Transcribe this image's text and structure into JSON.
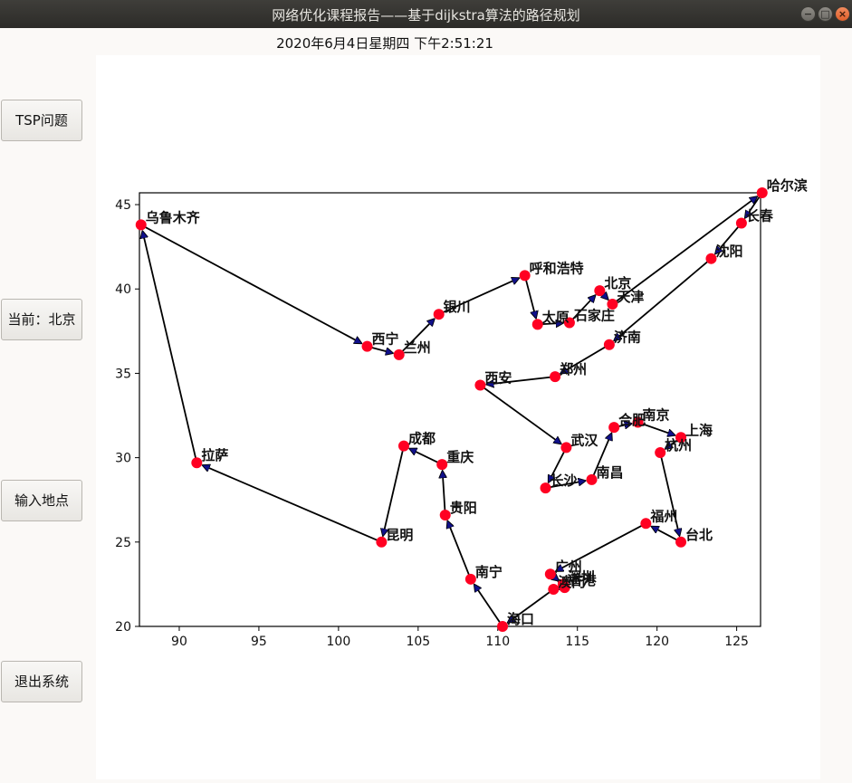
{
  "window": {
    "title": "网络优化课程报告——基于dijkstra算法的路径规划"
  },
  "datetime": "2020年6月4日星期四  下午2:51:21",
  "sidebar": {
    "tsp_button": "TSP问题",
    "current_label": "当前：北京",
    "input_button": "输入地点",
    "exit_button": "退出系统"
  },
  "colors": {
    "point": "#ff0022",
    "arrow": "#000000",
    "arrowhead": "#10108a"
  },
  "chart_data": {
    "type": "scatter",
    "title": "",
    "xlabel": "",
    "ylabel": "",
    "xlim": [
      87.5,
      126.5
    ],
    "ylim": [
      20,
      45.7
    ],
    "xticks": [
      90,
      95,
      100,
      105,
      110,
      115,
      120,
      125
    ],
    "yticks": [
      20,
      25,
      30,
      35,
      40,
      45
    ],
    "cities": [
      {
        "name": "北京",
        "x": 116.4,
        "y": 39.9
      },
      {
        "name": "天津",
        "x": 117.2,
        "y": 39.1
      },
      {
        "name": "哈尔滨",
        "x": 126.6,
        "y": 45.7
      },
      {
        "name": "长春",
        "x": 125.3,
        "y": 43.9
      },
      {
        "name": "沈阳",
        "x": 123.4,
        "y": 41.8
      },
      {
        "name": "济南",
        "x": 117.0,
        "y": 36.7
      },
      {
        "name": "郑州",
        "x": 113.6,
        "y": 34.8
      },
      {
        "name": "西安",
        "x": 108.9,
        "y": 34.3
      },
      {
        "name": "武汉",
        "x": 114.3,
        "y": 30.6
      },
      {
        "name": "长沙",
        "x": 113.0,
        "y": 28.2
      },
      {
        "name": "南昌",
        "x": 115.9,
        "y": 28.7
      },
      {
        "name": "合肥",
        "x": 117.3,
        "y": 31.8
      },
      {
        "name": "南京",
        "x": 118.8,
        "y": 32.1
      },
      {
        "name": "上海",
        "x": 121.5,
        "y": 31.2
      },
      {
        "name": "杭州",
        "x": 120.2,
        "y": 30.3
      },
      {
        "name": "台北",
        "x": 121.5,
        "y": 25.0
      },
      {
        "name": "福州",
        "x": 119.3,
        "y": 26.1
      },
      {
        "name": "广州",
        "x": 113.3,
        "y": 23.1
      },
      {
        "name": "深圳",
        "x": 114.1,
        "y": 22.5
      },
      {
        "name": "香港",
        "x": 114.2,
        "y": 22.3
      },
      {
        "name": "澳门",
        "x": 113.5,
        "y": 22.2
      },
      {
        "name": "海口",
        "x": 110.3,
        "y": 20.0
      },
      {
        "name": "南宁",
        "x": 108.3,
        "y": 22.8
      },
      {
        "name": "贵阳",
        "x": 106.7,
        "y": 26.6
      },
      {
        "name": "重庆",
        "x": 106.5,
        "y": 29.6
      },
      {
        "name": "成都",
        "x": 104.1,
        "y": 30.7
      },
      {
        "name": "昆明",
        "x": 102.7,
        "y": 25.0
      },
      {
        "name": "拉萨",
        "x": 91.1,
        "y": 29.7
      },
      {
        "name": "乌鲁木齐",
        "x": 87.6,
        "y": 43.8
      },
      {
        "name": "西宁",
        "x": 101.8,
        "y": 36.6
      },
      {
        "name": "兰州",
        "x": 103.8,
        "y": 36.1
      },
      {
        "name": "银川",
        "x": 106.3,
        "y": 38.5
      },
      {
        "name": "呼和浩特",
        "x": 111.7,
        "y": 40.8
      },
      {
        "name": "太原",
        "x": 112.5,
        "y": 37.9
      },
      {
        "name": "石家庄",
        "x": 114.5,
        "y": 38.0
      }
    ],
    "route": [
      "北京",
      "天津",
      "哈尔滨",
      "长春",
      "沈阳",
      "济南",
      "郑州",
      "西安",
      "武汉",
      "长沙",
      "南昌",
      "合肥",
      "南京",
      "上海",
      "杭州",
      "台北",
      "福州",
      "广州",
      "深圳",
      "香港",
      "澳门",
      "海口",
      "南宁",
      "贵阳",
      "重庆",
      "成都",
      "昆明",
      "拉萨",
      "乌鲁木齐",
      "西宁",
      "兰州",
      "银川",
      "呼和浩特",
      "太原",
      "石家庄",
      "北京"
    ]
  }
}
